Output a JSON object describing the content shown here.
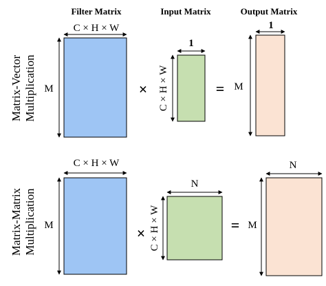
{
  "headers": {
    "filter": "Filter Matrix",
    "input": "Input Matrix",
    "output": "Output Matrix"
  },
  "row1": {
    "label_line1": "Matrix-Vector",
    "label_line2": "Multiplication",
    "filter_width_label": "C × H × W",
    "filter_height_label": "M",
    "times": "×",
    "input_width_label": "1",
    "input_height_label": "C × H × W",
    "equals": "=",
    "output_width_label": "1",
    "output_height_label": "M"
  },
  "row2": {
    "label_line1": "Matrix-Matrix",
    "label_line2": "Multiplication",
    "filter_width_label": "C × H × W",
    "filter_height_label": "M",
    "times": "×",
    "input_width_label": "N",
    "input_height_label": "C × H × W",
    "equals": "=",
    "output_width_label": "N",
    "output_height_label": "M"
  },
  "colors": {
    "filter_fill": "#9ec5f4",
    "input_fill": "#c6dfb0",
    "output_fill": "#fbe3d3",
    "stroke": "#000000"
  }
}
